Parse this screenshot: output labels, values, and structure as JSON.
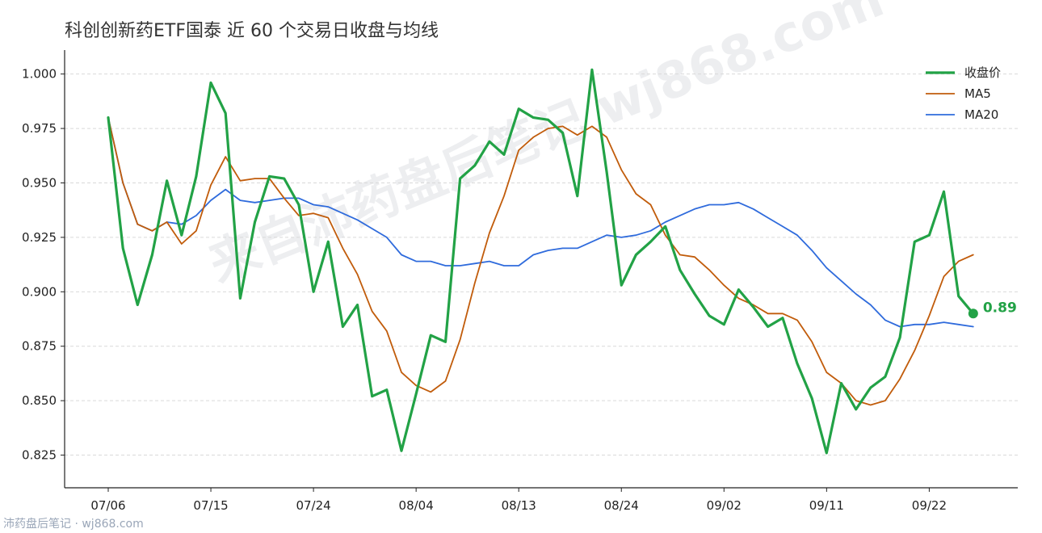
{
  "watermark": "来自沛药盘后笔记 wj868.com",
  "footer": "沛药盘后笔记 · wj868.com",
  "chart_data": {
    "type": "line",
    "title": "科创创新药ETF国泰 近 60 个交易日收盘与均线",
    "xlabel": "",
    "ylabel": "",
    "ylim": [
      0.81,
      1.011
    ],
    "yticks": [
      0.825,
      0.85,
      0.875,
      0.9,
      0.925,
      0.95,
      0.975,
      1.0
    ],
    "ytick_labels": [
      "0.825",
      "0.850",
      "0.875",
      "0.900",
      "0.925",
      "0.950",
      "0.975",
      "1.000"
    ],
    "xtick_labels": [
      "07/06",
      "07/15",
      "07/24",
      "08/04",
      "08/13",
      "08/24",
      "09/02",
      "09/11",
      "09/22"
    ],
    "xtick_index": [
      0,
      7,
      14,
      21,
      28,
      35,
      42,
      49,
      56
    ],
    "grid": "horizontal dashed",
    "legend_position": "top-right",
    "end_label": "0.89",
    "series": [
      {
        "name": "收盘价",
        "color": "#22a246",
        "values": [
          0.98,
          0.92,
          0.894,
          0.917,
          0.951,
          0.926,
          0.953,
          0.996,
          0.982,
          0.897,
          0.932,
          0.953,
          0.952,
          0.94,
          0.9,
          0.923,
          0.884,
          0.894,
          0.852,
          0.855,
          0.827,
          0.853,
          0.88,
          0.877,
          0.952,
          0.958,
          0.969,
          0.963,
          0.984,
          0.98,
          0.979,
          0.973,
          0.944,
          1.002,
          0.955,
          0.903,
          0.917,
          0.923,
          0.93,
          0.91,
          0.899,
          0.889,
          0.885,
          0.901,
          0.893,
          0.884,
          0.888,
          0.867,
          0.851,
          0.826,
          0.858,
          0.846,
          0.856,
          0.861,
          0.879,
          0.923,
          0.926,
          0.946,
          0.898,
          0.89
        ]
      },
      {
        "name": "MA5",
        "color": "#c15c0b",
        "values": [
          0.98,
          0.95,
          0.931,
          0.928,
          0.932,
          0.922,
          0.928,
          0.949,
          0.962,
          0.951,
          0.952,
          0.952,
          0.943,
          0.935,
          0.936,
          0.934,
          0.92,
          0.908,
          0.891,
          0.882,
          0.863,
          0.857,
          0.854,
          0.859,
          0.878,
          0.904,
          0.927,
          0.944,
          0.965,
          0.971,
          0.975,
          0.976,
          0.972,
          0.976,
          0.971,
          0.956,
          0.945,
          0.94,
          0.926,
          0.917,
          0.916,
          0.91,
          0.903,
          0.897,
          0.894,
          0.89,
          0.89,
          0.887,
          0.877,
          0.863,
          0.858,
          0.85,
          0.848,
          0.85,
          0.86,
          0.873,
          0.889,
          0.907,
          0.914,
          0.917
        ]
      },
      {
        "name": "MA20",
        "color": "#2f6bdc",
        "values": [
          0.98,
          0.95,
          0.931,
          0.928,
          0.932,
          0.931,
          0.935,
          0.942,
          0.947,
          0.942,
          0.941,
          0.942,
          0.943,
          0.943,
          0.94,
          0.939,
          0.936,
          0.933,
          0.929,
          0.925,
          0.917,
          0.914,
          0.914,
          0.912,
          0.912,
          0.913,
          0.914,
          0.912,
          0.912,
          0.917,
          0.919,
          0.92,
          0.92,
          0.923,
          0.926,
          0.925,
          0.926,
          0.928,
          0.932,
          0.935,
          0.938,
          0.94,
          0.94,
          0.941,
          0.938,
          0.934,
          0.93,
          0.926,
          0.919,
          0.911,
          0.905,
          0.899,
          0.894,
          0.887,
          0.884,
          0.885,
          0.885,
          0.886,
          0.885,
          0.884
        ]
      }
    ]
  }
}
